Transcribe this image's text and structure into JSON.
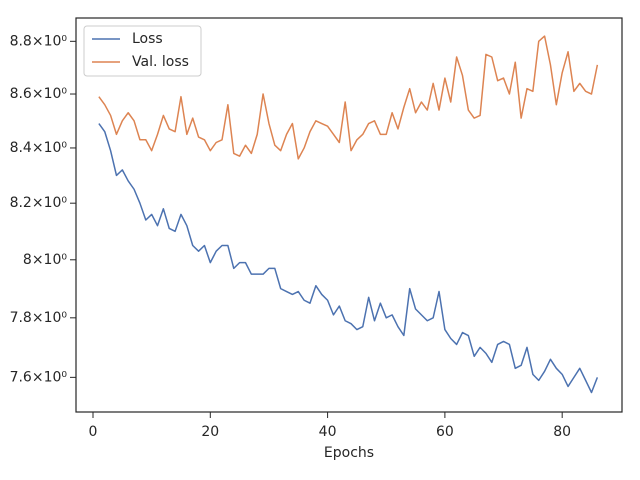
{
  "chart_data": {
    "type": "line",
    "xlabel": "Epochs",
    "x": [
      1,
      2,
      3,
      4,
      5,
      6,
      7,
      8,
      9,
      10,
      11,
      12,
      13,
      14,
      15,
      16,
      17,
      18,
      19,
      20,
      21,
      22,
      23,
      24,
      25,
      26,
      27,
      28,
      29,
      30,
      31,
      32,
      33,
      34,
      35,
      36,
      37,
      38,
      39,
      40,
      41,
      42,
      43,
      44,
      45,
      46,
      47,
      48,
      49,
      50,
      51,
      52,
      53,
      54,
      55,
      56,
      57,
      58,
      59,
      60,
      61,
      62,
      63,
      64,
      65,
      66,
      67,
      68,
      69,
      70,
      71,
      72,
      73,
      74,
      75,
      76,
      77,
      78,
      79,
      80,
      81,
      82,
      83,
      84,
      85,
      86
    ],
    "series": [
      {
        "name": "Loss",
        "color": "#4c72b0",
        "values": [
          8.49,
          8.46,
          8.39,
          8.3,
          8.32,
          8.28,
          8.25,
          8.2,
          8.14,
          8.16,
          8.12,
          8.18,
          8.11,
          8.1,
          8.16,
          8.12,
          8.05,
          8.03,
          8.05,
          7.99,
          8.03,
          8.05,
          8.05,
          7.97,
          7.99,
          7.99,
          7.95,
          7.95,
          7.95,
          7.97,
          7.97,
          7.9,
          7.89,
          7.88,
          7.89,
          7.86,
          7.85,
          7.91,
          7.88,
          7.86,
          7.81,
          7.84,
          7.79,
          7.78,
          7.76,
          7.77,
          7.87,
          7.79,
          7.85,
          7.8,
          7.81,
          7.77,
          7.74,
          7.9,
          7.83,
          7.81,
          7.79,
          7.8,
          7.89,
          7.76,
          7.73,
          7.71,
          7.75,
          7.74,
          7.67,
          7.7,
          7.68,
          7.65,
          7.71,
          7.72,
          7.71,
          7.63,
          7.64,
          7.7,
          7.61,
          7.59,
          7.62,
          7.66,
          7.63,
          7.61,
          7.57,
          7.6,
          7.63,
          7.59,
          7.55,
          7.6
        ]
      },
      {
        "name": "Val. loss",
        "color": "#dd8452",
        "values": [
          8.59,
          8.56,
          8.52,
          8.45,
          8.5,
          8.53,
          8.5,
          8.43,
          8.43,
          8.39,
          8.45,
          8.52,
          8.47,
          8.46,
          8.59,
          8.45,
          8.51,
          8.44,
          8.43,
          8.39,
          8.42,
          8.43,
          8.56,
          8.38,
          8.37,
          8.41,
          8.38,
          8.45,
          8.6,
          8.49,
          8.41,
          8.39,
          8.45,
          8.49,
          8.36,
          8.4,
          8.46,
          8.5,
          8.49,
          8.48,
          8.45,
          8.42,
          8.57,
          8.39,
          8.43,
          8.45,
          8.49,
          8.5,
          8.45,
          8.45,
          8.53,
          8.47,
          8.55,
          8.62,
          8.53,
          8.57,
          8.54,
          8.64,
          8.54,
          8.66,
          8.57,
          8.74,
          8.67,
          8.54,
          8.51,
          8.52,
          8.75,
          8.74,
          8.65,
          8.66,
          8.6,
          8.72,
          8.51,
          8.62,
          8.61,
          8.8,
          8.82,
          8.71,
          8.56,
          8.68,
          8.76,
          8.61,
          8.64,
          8.61,
          8.6,
          8.71
        ]
      }
    ],
    "xlim": [
      -2.9,
      90.2
    ],
    "xticks": [
      0,
      20,
      40,
      60,
      80
    ],
    "ylim": [
      7.486,
      8.89
    ],
    "log_y": true,
    "yticks": [
      {
        "value": 7.6,
        "label": "7.6×10⁰"
      },
      {
        "value": 7.8,
        "label": "7.8×10⁰"
      },
      {
        "value": 8,
        "label": "8×10⁰"
      },
      {
        "value": 8.2,
        "label": "8.2×10⁰"
      },
      {
        "value": 8.4,
        "label": "8.4×10⁰"
      },
      {
        "value": 8.6,
        "label": "8.6×10⁰"
      },
      {
        "value": 8.8,
        "label": "8.8×10⁰"
      }
    ],
    "legend": "upper left"
  }
}
